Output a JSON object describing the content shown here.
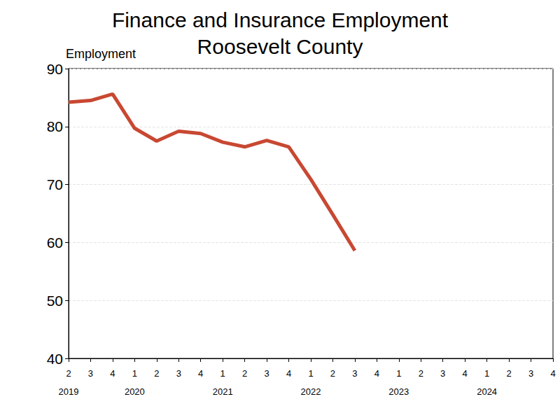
{
  "chart_data": {
    "type": "line",
    "title": "Finance and Insurance Employment\nRoosevelt County",
    "y_label": "Employment",
    "categories": [
      "2\n2019",
      "3",
      "4",
      "1\n2020",
      "2",
      "3",
      "4",
      "1\n2021",
      "2",
      "3",
      "4",
      "1\n2022",
      "2",
      "3",
      "4",
      "1\n2023",
      "2",
      "3",
      "4",
      "1\n2024",
      "2",
      "3",
      "4"
    ],
    "values": [
      84.2,
      84.5,
      85.6,
      79.7,
      77.5,
      79.2,
      78.8,
      77.3,
      76.5,
      77.6,
      76.5,
      70.9,
      64.8,
      58.6,
      null,
      null,
      null,
      null,
      null,
      null,
      null,
      null,
      null
    ],
    "color": "#c84832",
    "ylim": [
      40,
      90
    ],
    "yticks": [
      40,
      50,
      60,
      70,
      80,
      90
    ],
    "grid": true
  }
}
